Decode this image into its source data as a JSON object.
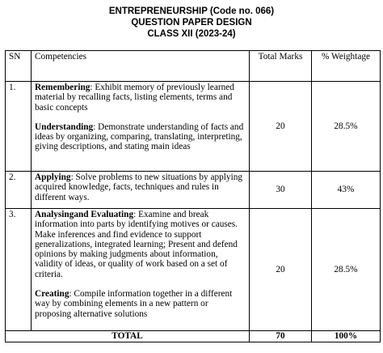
{
  "header": {
    "title": "ENTREPRENEURSHIP (Code no. 066)",
    "subtitle": "QUESTION PAPER DESIGN",
    "class": "CLASS XII (2023-24)"
  },
  "table": {
    "columns": [
      "SN",
      "Competencies",
      "Total Marks",
      "% Weightage"
    ],
    "rows": [
      {
        "sn": "1.",
        "competencies": [
          {
            "term": "Remembering",
            "text": ": Exhibit memory of previously learned material by recalling facts, listing elements, terms and basic concepts"
          },
          {
            "term": "Understanding",
            "text": ": Demonstrate understanding of facts and ideas by organizing, comparing, translating, interpreting, giving descriptions, and stating main ideas"
          }
        ],
        "marks": "20",
        "weightage": "28.5%"
      },
      {
        "sn": "2.",
        "competencies": [
          {
            "term": "Applying",
            "text": ": Solve problems to new situations by applying acquired knowledge, facts, techniques and rules in different ways."
          }
        ],
        "marks": "30",
        "weightage": "43%"
      },
      {
        "sn": "3.",
        "competencies": [
          {
            "term": "Analysingand Evaluating",
            "text": ": Examine and break information into parts by identifying motives or causes. Make inferences and find evidence to support generalizations, integrated learning; Present and defend opinions by making judgments about information, validity of ideas, or quality of work based on a set of criteria."
          },
          {
            "term": "Creating",
            "text": ": Compile information together in a different way by combining elements in a new pattern or proposing alternative solutions"
          }
        ],
        "marks": "20",
        "weightage": "28.5%"
      }
    ],
    "total": {
      "label": "TOTAL",
      "marks": "70",
      "weightage": "100%"
    }
  }
}
